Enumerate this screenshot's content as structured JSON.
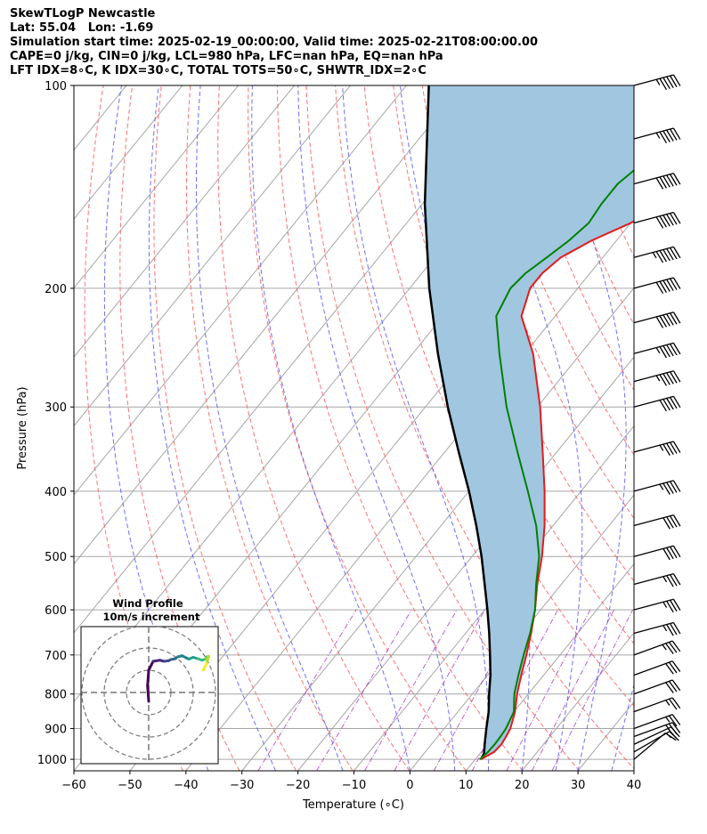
{
  "header": {
    "lines": [
      "SkewTLogP Newcastle",
      "Lat: 55.04   Lon: -1.69",
      "Simulation start time: 2025-02-19_00:00:00, Valid time: 2025-02-21T08:00:00.00",
      "CAPE=0 j/kg, CIN=0 j/kg, LCL=980 hPa, LFC=nan hPa, EQ=nan hPa",
      "LFT IDX=8∘C, K IDX=30∘C, TOTAL TOTS=50∘C, SHWTR_IDX=2∘C"
    ]
  },
  "chart_data": {
    "type": "line",
    "subtype": "skew-T log-p diagram",
    "xlabel": "Temperature (∘C)",
    "ylabel": "Pressure (hPa)",
    "xlim": [
      -60,
      40
    ],
    "ylim_hpa": [
      1040,
      100
    ],
    "y_scale": "log (inverted)",
    "x_ticks": [
      -60,
      -50,
      -40,
      -30,
      -20,
      -10,
      0,
      10,
      20,
      30,
      40
    ],
    "x_tick_labels": [
      "−60",
      "−50",
      "−40",
      "−30",
      "−20",
      "−10",
      "0",
      "10",
      "20",
      "30",
      "40"
    ],
    "y_ticks": [
      1000,
      900,
      800,
      700,
      600,
      500,
      400,
      300,
      200,
      100
    ],
    "y_tick_labels": [
      "1000",
      "900",
      "800",
      "700",
      "600",
      "500",
      "400",
      "300",
      "200",
      "100"
    ],
    "grid": true,
    "series": [
      {
        "color": "#e41a1c",
        "role": "temperature",
        "points": [
          [
            1000,
            11.0
          ],
          [
            975,
            12.3
          ],
          [
            950,
            12.5
          ],
          [
            925,
            12.2
          ],
          [
            900,
            11.8
          ],
          [
            850,
            10.2
          ],
          [
            800,
            8.0
          ],
          [
            750,
            6.0
          ],
          [
            700,
            4.0
          ],
          [
            650,
            1.7
          ],
          [
            600,
            -1.0
          ],
          [
            550,
            -4.3
          ],
          [
            500,
            -7.5
          ],
          [
            450,
            -11.5
          ],
          [
            400,
            -16.5
          ],
          [
            350,
            -22.5
          ],
          [
            300,
            -29.5
          ],
          [
            250,
            -38.5
          ],
          [
            220,
            -46.0
          ],
          [
            200,
            -48.5
          ],
          [
            190,
            -48.5
          ],
          [
            180,
            -47.5
          ],
          [
            170,
            -44.5
          ],
          [
            160,
            -40.0
          ],
          [
            150,
            -36.5
          ],
          [
            140,
            -33.0
          ],
          [
            130,
            -30.0
          ],
          [
            120,
            -27.0
          ],
          [
            110,
            -23.5
          ],
          [
            100,
            -20.0
          ]
        ]
      },
      {
        "color": "#008000",
        "role": "dewpoint",
        "points": [
          [
            1000,
            10.8
          ],
          [
            975,
            11.2
          ],
          [
            950,
            11.3
          ],
          [
            925,
            11.2
          ],
          [
            900,
            11.0
          ],
          [
            850,
            10.0
          ],
          [
            800,
            7.5
          ],
          [
            750,
            5.5
          ],
          [
            700,
            3.5
          ],
          [
            650,
            1.5
          ],
          [
            600,
            -1.0
          ],
          [
            550,
            -4.5
          ],
          [
            500,
            -8.0
          ],
          [
            450,
            -13.0
          ],
          [
            400,
            -19.5
          ],
          [
            350,
            -27.0
          ],
          [
            300,
            -35.5
          ],
          [
            250,
            -44.5
          ],
          [
            220,
            -50.5
          ],
          [
            200,
            -52.0
          ],
          [
            190,
            -51.5
          ],
          [
            180,
            -50.0
          ],
          [
            170,
            -48.5
          ],
          [
            160,
            -47.5
          ],
          [
            150,
            -48.0
          ],
          [
            140,
            -48.0
          ],
          [
            130,
            -46.5
          ],
          [
            120,
            -44.5
          ],
          [
            110,
            -42.5
          ],
          [
            100,
            -40.0
          ]
        ]
      },
      {
        "color": "#000000",
        "role": "parcel profile",
        "points": [
          [
            1000,
            11.0
          ],
          [
            980,
            10.7
          ],
          [
            950,
            9.5
          ],
          [
            900,
            7.5
          ],
          [
            850,
            5.5
          ],
          [
            800,
            3.0
          ],
          [
            750,
            0.5
          ],
          [
            700,
            -2.5
          ],
          [
            650,
            -5.8
          ],
          [
            600,
            -9.5
          ],
          [
            550,
            -13.7
          ],
          [
            500,
            -18.3
          ],
          [
            450,
            -23.7
          ],
          [
            400,
            -30.0
          ],
          [
            350,
            -37.5
          ],
          [
            300,
            -46.0
          ],
          [
            250,
            -55.5
          ],
          [
            200,
            -66.5
          ],
          [
            150,
            -79.5
          ],
          [
            100,
            -96.0
          ]
        ]
      }
    ],
    "shaded_area": {
      "between": [
        "temperature",
        "parcel profile"
      ],
      "color": "#a1c6df"
    },
    "reference_lines": {
      "dry_adiabats_theta_k": [
        230,
        240,
        250,
        260,
        270,
        280,
        290,
        300,
        310,
        320,
        330,
        340,
        350,
        360,
        370,
        380,
        390,
        400,
        410,
        420,
        430,
        440,
        450,
        460,
        470,
        480,
        490
      ],
      "dry_adiabat_color": "#ff5a5a",
      "moist_adiabats_start_temp_c": [
        -36,
        -24,
        -12,
        0,
        8,
        14,
        20,
        26,
        30,
        36,
        40
      ],
      "moist_adiabat_color": "#4b4bff",
      "mixing_lines": [
        0.4,
        1,
        2,
        3,
        5,
        8,
        12,
        16,
        20
      ],
      "mixing_line_color": "#a83cc7",
      "isotherm_color": "#a6a6a6"
    },
    "wind_barbs": {
      "pressures": [
        1000,
        975,
        950,
        925,
        900,
        850,
        800,
        750,
        700,
        650,
        600,
        550,
        500,
        450,
        400,
        350,
        300,
        275,
        250,
        225,
        200,
        180,
        160,
        140,
        120,
        100
      ],
      "speed_kt": [
        10,
        15,
        20,
        25,
        25,
        25,
        30,
        30,
        35,
        35,
        35,
        35,
        40,
        40,
        45,
        45,
        50,
        55,
        55,
        60,
        60,
        65,
        60,
        60,
        55,
        55
      ],
      "direction_deg": [
        230,
        240,
        245,
        250,
        250,
        250,
        250,
        250,
        250,
        255,
        255,
        255,
        255,
        255,
        255,
        255,
        255,
        255,
        255,
        255,
        255,
        255,
        255,
        255,
        255,
        255
      ]
    },
    "inset": {
      "title_line1": "Wind Profile",
      "title_line2": "10m/s increment",
      "rings_ms": [
        10,
        20,
        30
      ],
      "hodograph_uv": [
        [
          0,
          -4
        ],
        [
          -0.5,
          3
        ],
        [
          0,
          10
        ],
        [
          2,
          14
        ],
        [
          5,
          14.5
        ],
        [
          7,
          14
        ],
        [
          9,
          14.3
        ],
        [
          10,
          14.8
        ],
        [
          12,
          15.2
        ],
        [
          13,
          16
        ],
        [
          15,
          16.5
        ],
        [
          18,
          15
        ],
        [
          20,
          15.8
        ],
        [
          22,
          15.2
        ],
        [
          24,
          14.5
        ],
        [
          25.5,
          15
        ],
        [
          26,
          16
        ],
        [
          27,
          16.3
        ],
        [
          26.5,
          14.8
        ],
        [
          26,
          13
        ],
        [
          25,
          11
        ],
        [
          24.5,
          10
        ]
      ]
    }
  }
}
